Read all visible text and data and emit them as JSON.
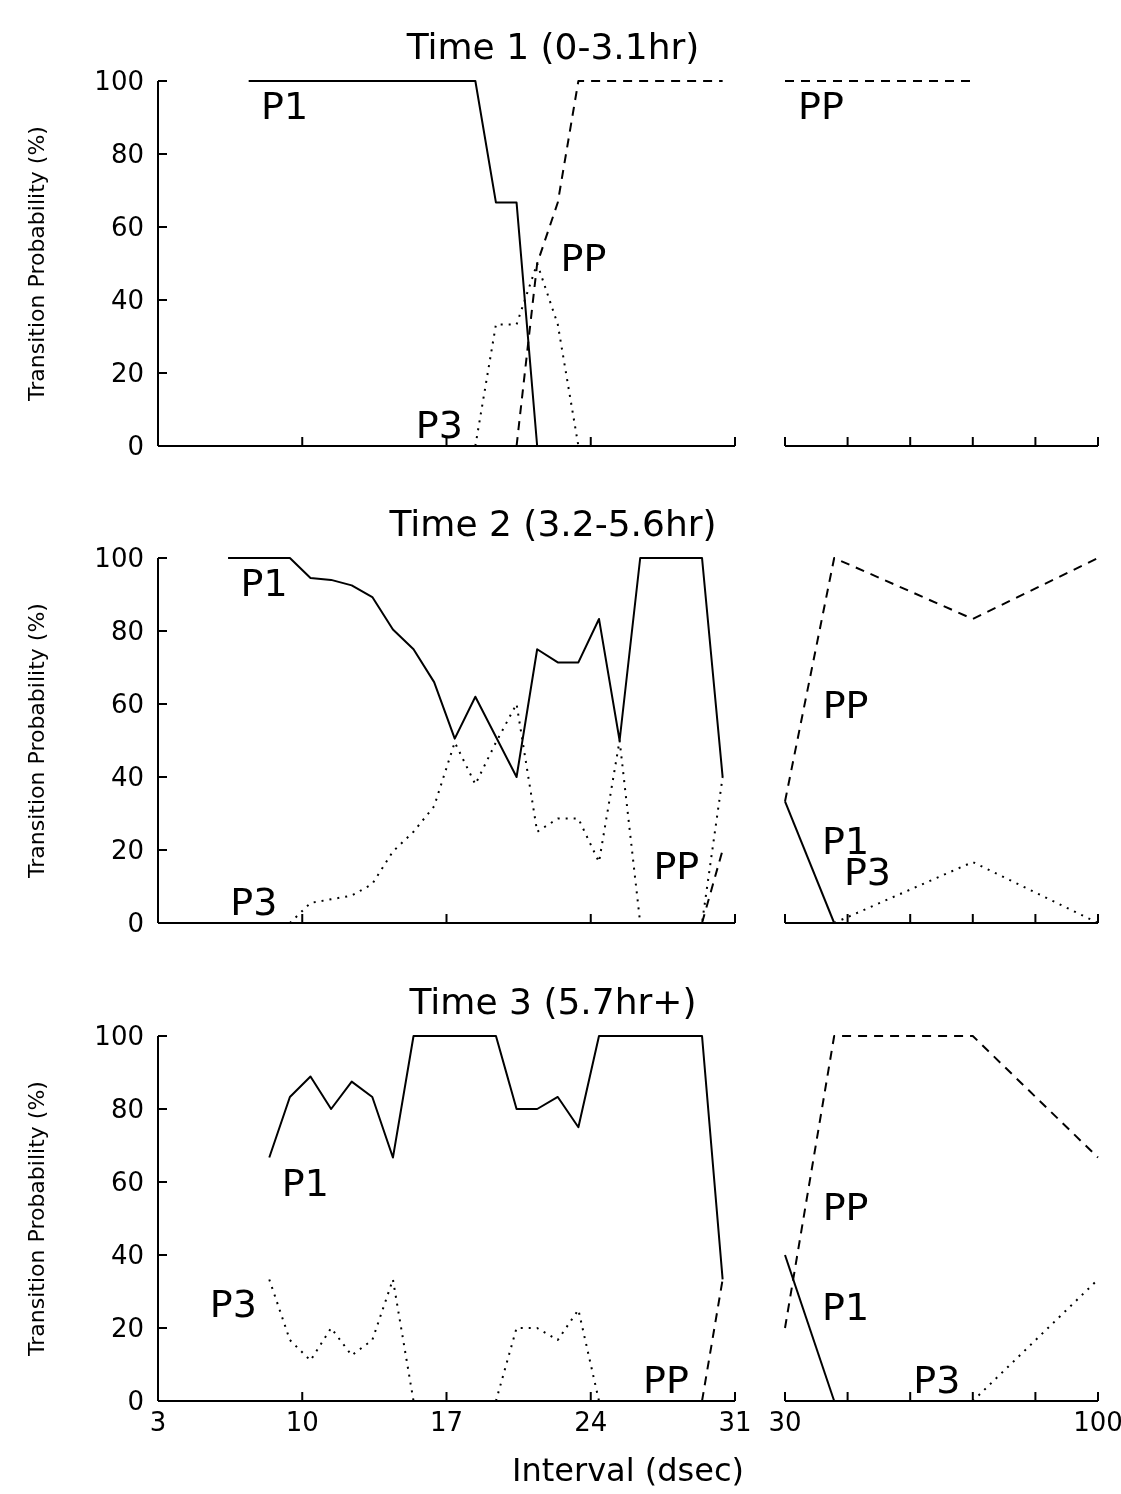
{
  "chart_data": [
    {
      "type": "line",
      "title": "Time 1 (0-3.1hr)",
      "ylabel": "Transition Probability (%)",
      "xlim": [
        3,
        31
      ],
      "xticks": [
        3,
        10,
        17,
        24,
        31
      ],
      "ylim": [
        0,
        100
      ],
      "yticks": [
        0,
        20,
        40,
        60,
        80,
        100
      ],
      "tick_labels": "y",
      "series": [
        {
          "name": "P1",
          "color": "#000000",
          "line_style": "solid",
          "x": [
            7.4,
            18.4,
            19.4,
            20.4,
            21.4
          ],
          "values": [
            100,
            100,
            66.7,
            66.7,
            0
          ]
        },
        {
          "name": "P3",
          "color": "#000000",
          "line_style": "dotted",
          "x": [
            18.4,
            19.4,
            20.4,
            21.4,
            22.4,
            23.4
          ],
          "values": [
            0,
            33.3,
            33.3,
            50,
            33.3,
            0
          ]
        },
        {
          "name": "PP",
          "color": "#000000",
          "line_style": "dashed",
          "x": [
            20.4,
            21.4,
            22.4,
            23.4,
            30.4
          ],
          "values": [
            0,
            50,
            66.7,
            100,
            100
          ]
        }
      ]
    },
    {
      "type": "line",
      "xlim": [
        30,
        100
      ],
      "xticks": [
        30,
        {
          "value": 44,
          "label": null
        },
        {
          "value": 58,
          "label": null
        },
        {
          "value": 72,
          "label": null
        },
        {
          "value": 86,
          "label": null
        },
        100
      ],
      "ylim": [
        0,
        100
      ],
      "tick_labels": false,
      "series": [
        {
          "name": "PP",
          "color": "#000000",
          "line_style": "dashed",
          "x": [
            30,
            72
          ],
          "values": [
            100,
            100
          ]
        }
      ]
    },
    {
      "type": "line",
      "title": "Time 2 (3.2-5.6hr)",
      "ylabel": "Transition Probability (%)",
      "xlim": [
        3,
        31
      ],
      "xticks": [
        3,
        10,
        17,
        24,
        31
      ],
      "ylim": [
        0,
        100
      ],
      "yticks": [
        0,
        20,
        40,
        60,
        80,
        100
      ],
      "tick_labels": "y",
      "series": [
        {
          "name": "P1",
          "color": "#000000",
          "line_style": "solid",
          "x": [
            6.4,
            9.4,
            10.4,
            11.4,
            12.4,
            13.4,
            14.4,
            15.4,
            16.4,
            17.4,
            18.4,
            20.4,
            21.4,
            22.4,
            23.4,
            24.4,
            25.4,
            26.4,
            29.4,
            30.4
          ],
          "values": [
            100,
            100,
            94.5,
            94,
            92.5,
            89.3,
            80.4,
            75,
            66,
            50.5,
            62,
            40,
            75,
            71.4,
            71.4,
            83.3,
            50,
            100,
            100,
            40
          ]
        },
        {
          "name": "P3",
          "color": "#000000",
          "line_style": "dotted",
          "x": [
            9.4,
            10.4,
            11.4,
            12.4,
            13.4,
            14.4,
            15.4,
            16.4,
            17.4,
            18.4,
            19.4,
            20.4,
            21.4,
            22.4,
            23.4,
            24.4,
            25.4,
            26.4,
            29.4,
            30.4
          ],
          "values": [
            0,
            5.5,
            6.5,
            7.5,
            10.7,
            19.6,
            25,
            32,
            49.5,
            38,
            49.5,
            60,
            25,
            28.6,
            28.6,
            16.7,
            50,
            0,
            0,
            40
          ]
        },
        {
          "name": "PP",
          "color": "#000000",
          "line_style": "dashed",
          "x": [
            29.4,
            30.4
          ],
          "values": [
            0,
            20
          ]
        }
      ]
    },
    {
      "type": "line",
      "xlim": [
        30,
        100
      ],
      "xticks": [
        30,
        {
          "value": 44,
          "label": null
        },
        {
          "value": 58,
          "label": null
        },
        {
          "value": 72,
          "label": null
        },
        {
          "value": 86,
          "label": null
        },
        100
      ],
      "ylim": [
        0,
        100
      ],
      "tick_labels": false,
      "series": [
        {
          "name": "P1",
          "color": "#000000",
          "line_style": "solid",
          "x": [
            30,
            41
          ],
          "values": [
            33.3,
            0
          ]
        },
        {
          "name": "P3",
          "color": "#000000",
          "line_style": "dotted",
          "x": [
            41,
            72,
            100
          ],
          "values": [
            0,
            16.7,
            0
          ]
        },
        {
          "name": "PP",
          "color": "#000000",
          "line_style": "dashed",
          "x": [
            30,
            41,
            72,
            100
          ],
          "values": [
            33.3,
            100,
            83.3,
            100
          ]
        }
      ]
    },
    {
      "type": "line",
      "title": "Time 3 (5.7hr+)",
      "ylabel": "Transition Probability (%)",
      "xlim": [
        3,
        31
      ],
      "xticks": [
        3,
        10,
        17,
        24,
        31
      ],
      "ylim": [
        0,
        100
      ],
      "yticks": [
        0,
        20,
        40,
        60,
        80,
        100
      ],
      "series": [
        {
          "name": "P1",
          "color": "#000000",
          "line_style": "solid",
          "x": [
            8.4,
            9.4,
            10.4,
            11.4,
            12.4,
            13.4,
            14.4,
            15.4,
            19.4,
            20.4,
            21.4,
            22.4,
            23.4,
            24.4,
            29.4,
            30.4
          ],
          "values": [
            66.7,
            83.3,
            88.9,
            80,
            87.5,
            83.3,
            66.7,
            100,
            100,
            80,
            80,
            83.3,
            75,
            100,
            100,
            33.3
          ]
        },
        {
          "name": "P3",
          "color": "#000000",
          "line_style": "dotted",
          "x": [
            8.4,
            9.4,
            10.4,
            11.4,
            12.4,
            13.4,
            14.4,
            15.4,
            17.4,
            19.4,
            20.4,
            21.4,
            22.4,
            23.4,
            24.4
          ],
          "values": [
            33.3,
            16.7,
            11.1,
            20,
            12.5,
            16.7,
            33.3,
            0,
            null,
            0,
            20,
            20,
            16.7,
            25,
            0
          ]
        },
        {
          "name": "PP",
          "color": "#000000",
          "line_style": "dashed",
          "x": [
            29.4,
            30.4
          ],
          "values": [
            0,
            33.3
          ]
        }
      ]
    },
    {
      "type": "line",
      "xlabel": "Interval (dsec)",
      "xlim": [
        30,
        100
      ],
      "xticks": [
        30,
        {
          "value": 44,
          "label": null
        },
        {
          "value": 58,
          "label": null
        },
        {
          "value": 72,
          "label": null
        },
        {
          "value": 86,
          "label": null
        },
        100
      ],
      "ylim": [
        0,
        100
      ],
      "tick_labels": "x",
      "series": [
        {
          "name": "P1",
          "color": "#000000",
          "line_style": "solid",
          "x": [
            30,
            41
          ],
          "values": [
            40,
            0
          ]
        },
        {
          "name": "P3",
          "color": "#000000",
          "line_style": "dotted",
          "x": [
            72,
            100
          ],
          "values": [
            0,
            33.3
          ]
        },
        {
          "name": "PP",
          "color": "#000000",
          "line_style": "dashed",
          "x": [
            30,
            41,
            72,
            100
          ],
          "values": [
            20,
            100,
            100,
            66.7
          ]
        }
      ]
    }
  ]
}
